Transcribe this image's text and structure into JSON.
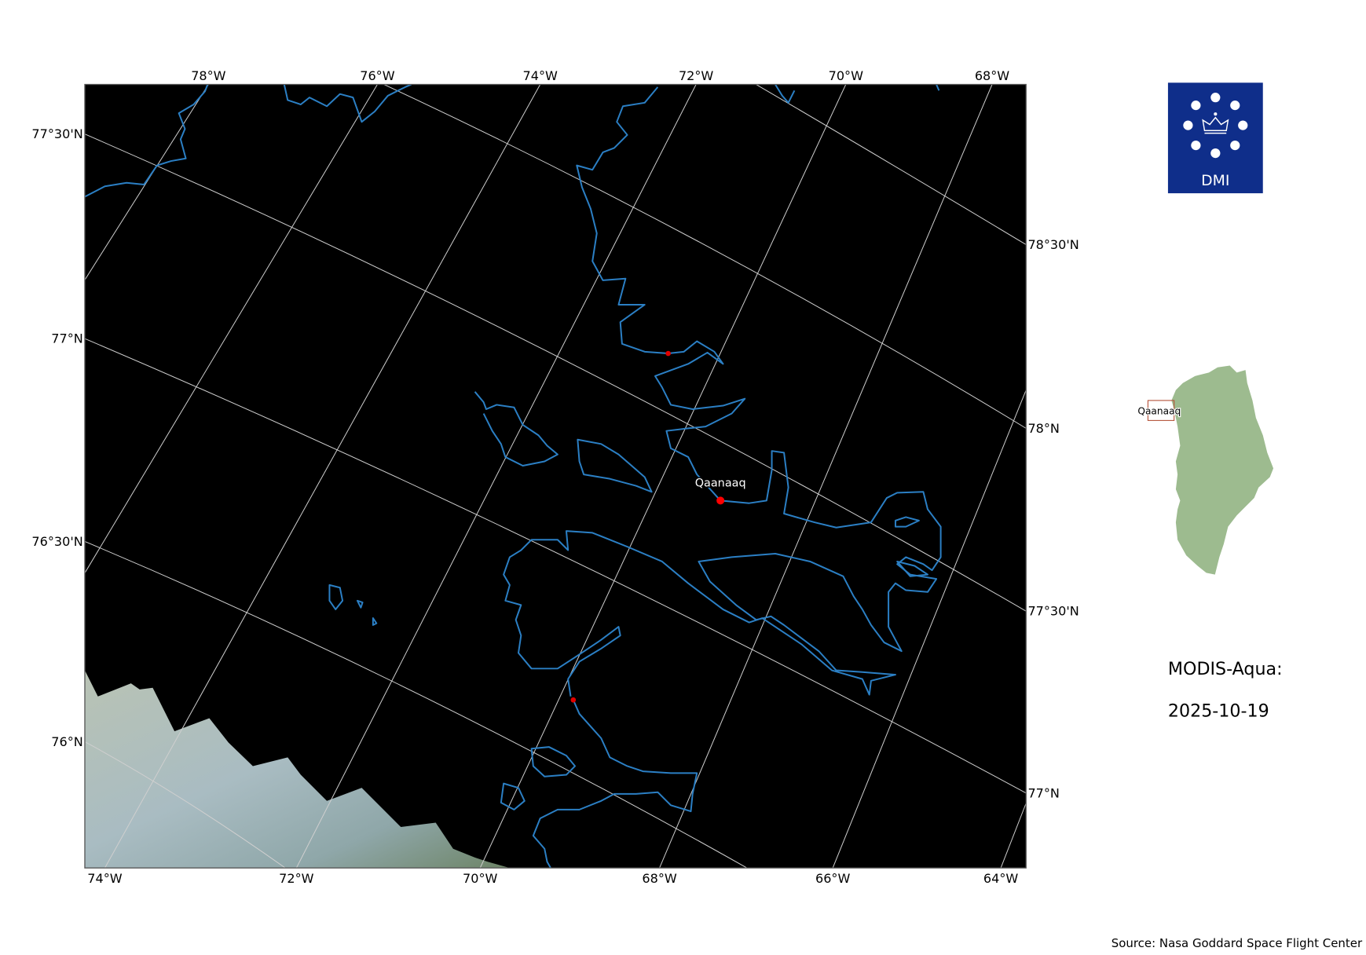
{
  "map": {
    "top_lon_labels": [
      "78°W",
      "76°W",
      "74°W",
      "72°W",
      "70°W",
      "68°W"
    ],
    "bottom_lon_labels": [
      "74°W",
      "72°W",
      "70°W",
      "68°W",
      "66°W",
      "64°W"
    ],
    "left_lat_labels": [
      "77°30'N",
      "77°N",
      "76°30'N",
      "76°N"
    ],
    "right_lat_labels": [
      "78°30'N",
      "78°N",
      "77°30'N",
      "77°N"
    ],
    "places": [
      {
        "name": "Qaanaaq",
        "marker_color": "#ff0000"
      }
    ],
    "coastline_color": "#2b7fc4",
    "background_color": "#000000"
  },
  "logo": {
    "text": "DMI",
    "color": "#0f2e8a"
  },
  "inset": {
    "place_label": "Qaanaaq",
    "land_color": "#9dbb8f",
    "box_color": "#b5533a"
  },
  "info": {
    "sensor": "MODIS-Aqua:",
    "date": "2025-10-19"
  },
  "source": "Source: Nasa Goddard Space Flight Center"
}
